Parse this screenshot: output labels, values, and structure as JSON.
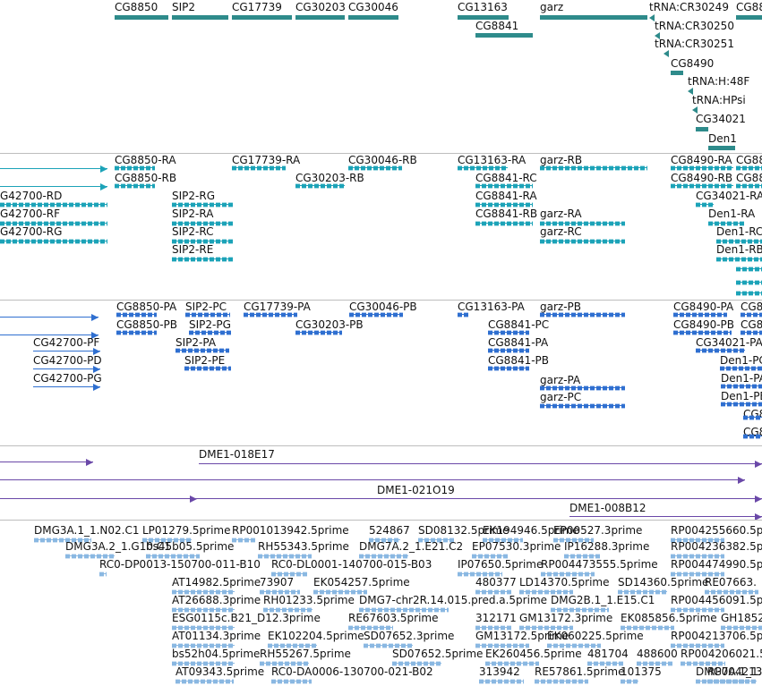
{
  "colors": {
    "gene": "#2e8b8b",
    "mrna": "#1ca3b8",
    "protein": "#2f6fd0",
    "clone": "#6a48a8",
    "est": "#8ab8e2",
    "separator": "#bdbdbd"
  },
  "tracks": [
    {
      "id": "gene",
      "features": [
        {
          "label": "CG8850"
        },
        {
          "label": "SIP2"
        },
        {
          "label": "CG17739"
        },
        {
          "label": "CG30203"
        },
        {
          "label": "CG30046"
        },
        {
          "label": "CG13163"
        },
        {
          "label": "CG8841"
        },
        {
          "label": "garz"
        },
        {
          "label": "tRNA:CR30249"
        },
        {
          "label": "CG88"
        },
        {
          "label": "tRNA:CR30250"
        },
        {
          "label": "tRNA:CR30251"
        },
        {
          "label": "CG8490"
        },
        {
          "label": "tRNA:H:48F"
        },
        {
          "label": "tRNA:HPsi"
        },
        {
          "label": "CG34021"
        },
        {
          "label": "Den1"
        }
      ]
    },
    {
      "id": "mrna",
      "features": [
        {
          "label": ""
        },
        {
          "label": "CG8850-RA"
        },
        {
          "label": "CG17739-RA"
        },
        {
          "label": "CG30046-RB"
        },
        {
          "label": "CG13163-RA"
        },
        {
          "label": "garz-RB"
        },
        {
          "label": "CG8490-RA"
        },
        {
          "label": "CG88"
        },
        {
          "label": ""
        },
        {
          "label": "CG8850-RB"
        },
        {
          "label": "CG30203-RB"
        },
        {
          "label": "CG8841-RC"
        },
        {
          "label": "CG8490-RB"
        },
        {
          "label": "CG88"
        },
        {
          "label": "G42700-RD"
        },
        {
          "label": "SIP2-RG"
        },
        {
          "label": "CG8841-RA"
        },
        {
          "label": "CG34021-RA"
        },
        {
          "label": "G42700-RF"
        },
        {
          "label": "SIP2-RA"
        },
        {
          "label": "CG8841-RB"
        },
        {
          "label": "garz-RA"
        },
        {
          "label": "Den1-RA"
        },
        {
          "label": "G42700-RG"
        },
        {
          "label": "SIP2-RC"
        },
        {
          "label": "garz-RC"
        },
        {
          "label": "Den1-RC"
        },
        {
          "label": "SIP2-RE"
        },
        {
          "label": "Den1-RB"
        },
        {
          "label": ""
        },
        {
          "label": ""
        },
        {
          "label": ""
        }
      ]
    },
    {
      "id": "protein",
      "features": [
        {
          "label": ""
        },
        {
          "label": "CG8850-PA"
        },
        {
          "label": "SIP2-PC"
        },
        {
          "label": "CG17739-PA"
        },
        {
          "label": "CG30046-PB"
        },
        {
          "label": "CG13163-PA"
        },
        {
          "label": "garz-PB"
        },
        {
          "label": "CG8490-PA"
        },
        {
          "label": "CG8"
        },
        {
          "label": ""
        },
        {
          "label": "CG8850-PB"
        },
        {
          "label": "SIP2-PG"
        },
        {
          "label": "CG30203-PB"
        },
        {
          "label": "CG8841-PC"
        },
        {
          "label": "CG8490-PB"
        },
        {
          "label": "CG8"
        },
        {
          "label": "CG42700-PF"
        },
        {
          "label": "SIP2-PA"
        },
        {
          "label": "CG8841-PA"
        },
        {
          "label": "CG34021-PA"
        },
        {
          "label": "CG42700-PD"
        },
        {
          "label": "SIP2-PE"
        },
        {
          "label": "CG8841-PB"
        },
        {
          "label": "Den1-PC"
        },
        {
          "label": "CG42700-PG"
        },
        {
          "label": "garz-PA"
        },
        {
          "label": "Den1-PA"
        },
        {
          "label": "garz-PC"
        },
        {
          "label": "Den1-PB"
        },
        {
          "label": "CG8"
        },
        {
          "label": "CG8"
        }
      ]
    },
    {
      "id": "clone",
      "features": [
        {
          "label": ""
        },
        {
          "label": "DME1-018E17"
        },
        {
          "label": ""
        },
        {
          "label": "DME1-021O19"
        },
        {
          "label": ""
        },
        {
          "label": "DME1-008B12"
        }
      ]
    },
    {
      "id": "est",
      "features": [
        {
          "label": "DMG3A.1_1.N02.C1"
        },
        {
          "label": "LP01279.5prime"
        },
        {
          "label": "RP001013942.5prime"
        },
        {
          "label": "524867"
        },
        {
          "label": "SD08132.5prime"
        },
        {
          "label": "EK194946.5prime"
        },
        {
          "label": "EP00527.3prime"
        },
        {
          "label": "RP004255660.5p"
        },
        {
          "label": "DMG3A.2_1.G10.C1"
        },
        {
          "label": "bs45b05.5prime"
        },
        {
          "label": "RH55343.5prime"
        },
        {
          "label": "DMG7A.2_1.E21.C2"
        },
        {
          "label": "EP07530.3prime"
        },
        {
          "label": "IP16288.3prime"
        },
        {
          "label": "RP004236382.5p"
        },
        {
          "label": "RC0-DP0013-150700-011-B10"
        },
        {
          "label": "RC0-DL0001-140700-015-B03"
        },
        {
          "label": "IP07650.5prime"
        },
        {
          "label": "RP004473555.5prime"
        },
        {
          "label": "RP004474990.5p"
        },
        {
          "label": "AT14982.5prime"
        },
        {
          "label": "73907"
        },
        {
          "label": "EK054257.5prime"
        },
        {
          "label": "480377"
        },
        {
          "label": "LD14370.5prime"
        },
        {
          "label": "SD14360.5prime"
        },
        {
          "label": "RE07663."
        },
        {
          "label": "AT26688.3prime"
        },
        {
          "label": "RH01233.5prime"
        },
        {
          "label": "DMG7-chr2R.14.015.pred.a.5prime"
        },
        {
          "label": "DMG2B.1_1.E15.C1"
        },
        {
          "label": "RP004456091.5p"
        },
        {
          "label": "ESG0115c.B21_D12.3prime"
        },
        {
          "label": "RE67603.5prime"
        },
        {
          "label": "312171"
        },
        {
          "label": "GM13172.3prime"
        },
        {
          "label": "EK085856.5prime"
        },
        {
          "label": "GH1852"
        },
        {
          "label": "AT01134.3prime"
        },
        {
          "label": "EK102204.5prime"
        },
        {
          "label": "SD07652.3prime"
        },
        {
          "label": "GM13172.5prime"
        },
        {
          "label": "EK060225.5prime"
        },
        {
          "label": "RP004213706.5p"
        },
        {
          "label": "bs52h04.5prime"
        },
        {
          "label": "RH55267.5prime"
        },
        {
          "label": "SD07652.5prime"
        },
        {
          "label": "EK260456.5prime"
        },
        {
          "label": "481704"
        },
        {
          "label": "488600"
        },
        {
          "label": "RP004206021.5p"
        },
        {
          "label": "AT09343.5prime"
        },
        {
          "label": "RC0-DA0006-130700-021-B02"
        },
        {
          "label": "313942"
        },
        {
          "label": "RE57861.5prime"
        },
        {
          "label": "101375"
        },
        {
          "label": "DMG7A.1_1."
        },
        {
          "label": "RP004213896.5p"
        }
      ]
    }
  ]
}
